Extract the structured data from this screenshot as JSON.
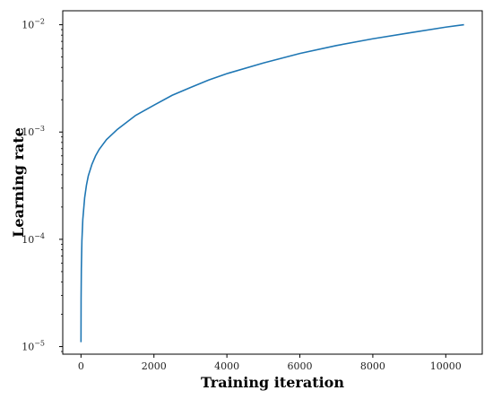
{
  "chart_data": {
    "type": "line",
    "title": "",
    "xlabel": "Training iteration",
    "ylabel": "Learning rate",
    "x_scale": "linear",
    "y_scale": "log",
    "xlim": [
      -500,
      11000
    ],
    "ylim": [
      8.5e-06,
      0.0135
    ],
    "x_ticks": [
      0,
      2000,
      4000,
      6000,
      8000,
      10000
    ],
    "x_tick_labels": [
      "0",
      "2000",
      "4000",
      "6000",
      "8000",
      "10000"
    ],
    "y_ticks": [
      1e-05,
      0.0001,
      0.001,
      0.01
    ],
    "y_tick_labels": [
      {
        "base": "10",
        "exp": "−5"
      },
      {
        "base": "10",
        "exp": "−4"
      },
      {
        "base": "10",
        "exp": "−3"
      },
      {
        "base": "10",
        "exp": "−2"
      }
    ],
    "grid": false,
    "legend": "none",
    "line_color": "#1f77b4",
    "series": [
      {
        "x": [
          0,
          3,
          10,
          25,
          50,
          100,
          150,
          200,
          300,
          400,
          500,
          700,
          1000,
          1500,
          2000,
          2500,
          3000,
          3500,
          4000,
          5000,
          6000,
          7000,
          8000,
          9000,
          10000,
          10500
        ],
        "y": [
          1.1e-05,
          2.8e-05,
          5.3e-05,
          9.7e-05,
          0.000153,
          0.000243,
          0.00032,
          0.00039,
          0.0005,
          0.0006,
          0.00069,
          0.00085,
          0.00106,
          0.00143,
          0.00178,
          0.0022,
          0.0026,
          0.00305,
          0.0035,
          0.0044,
          0.0054,
          0.0064,
          0.0074,
          0.0084,
          0.0095,
          0.01
        ]
      }
    ]
  }
}
